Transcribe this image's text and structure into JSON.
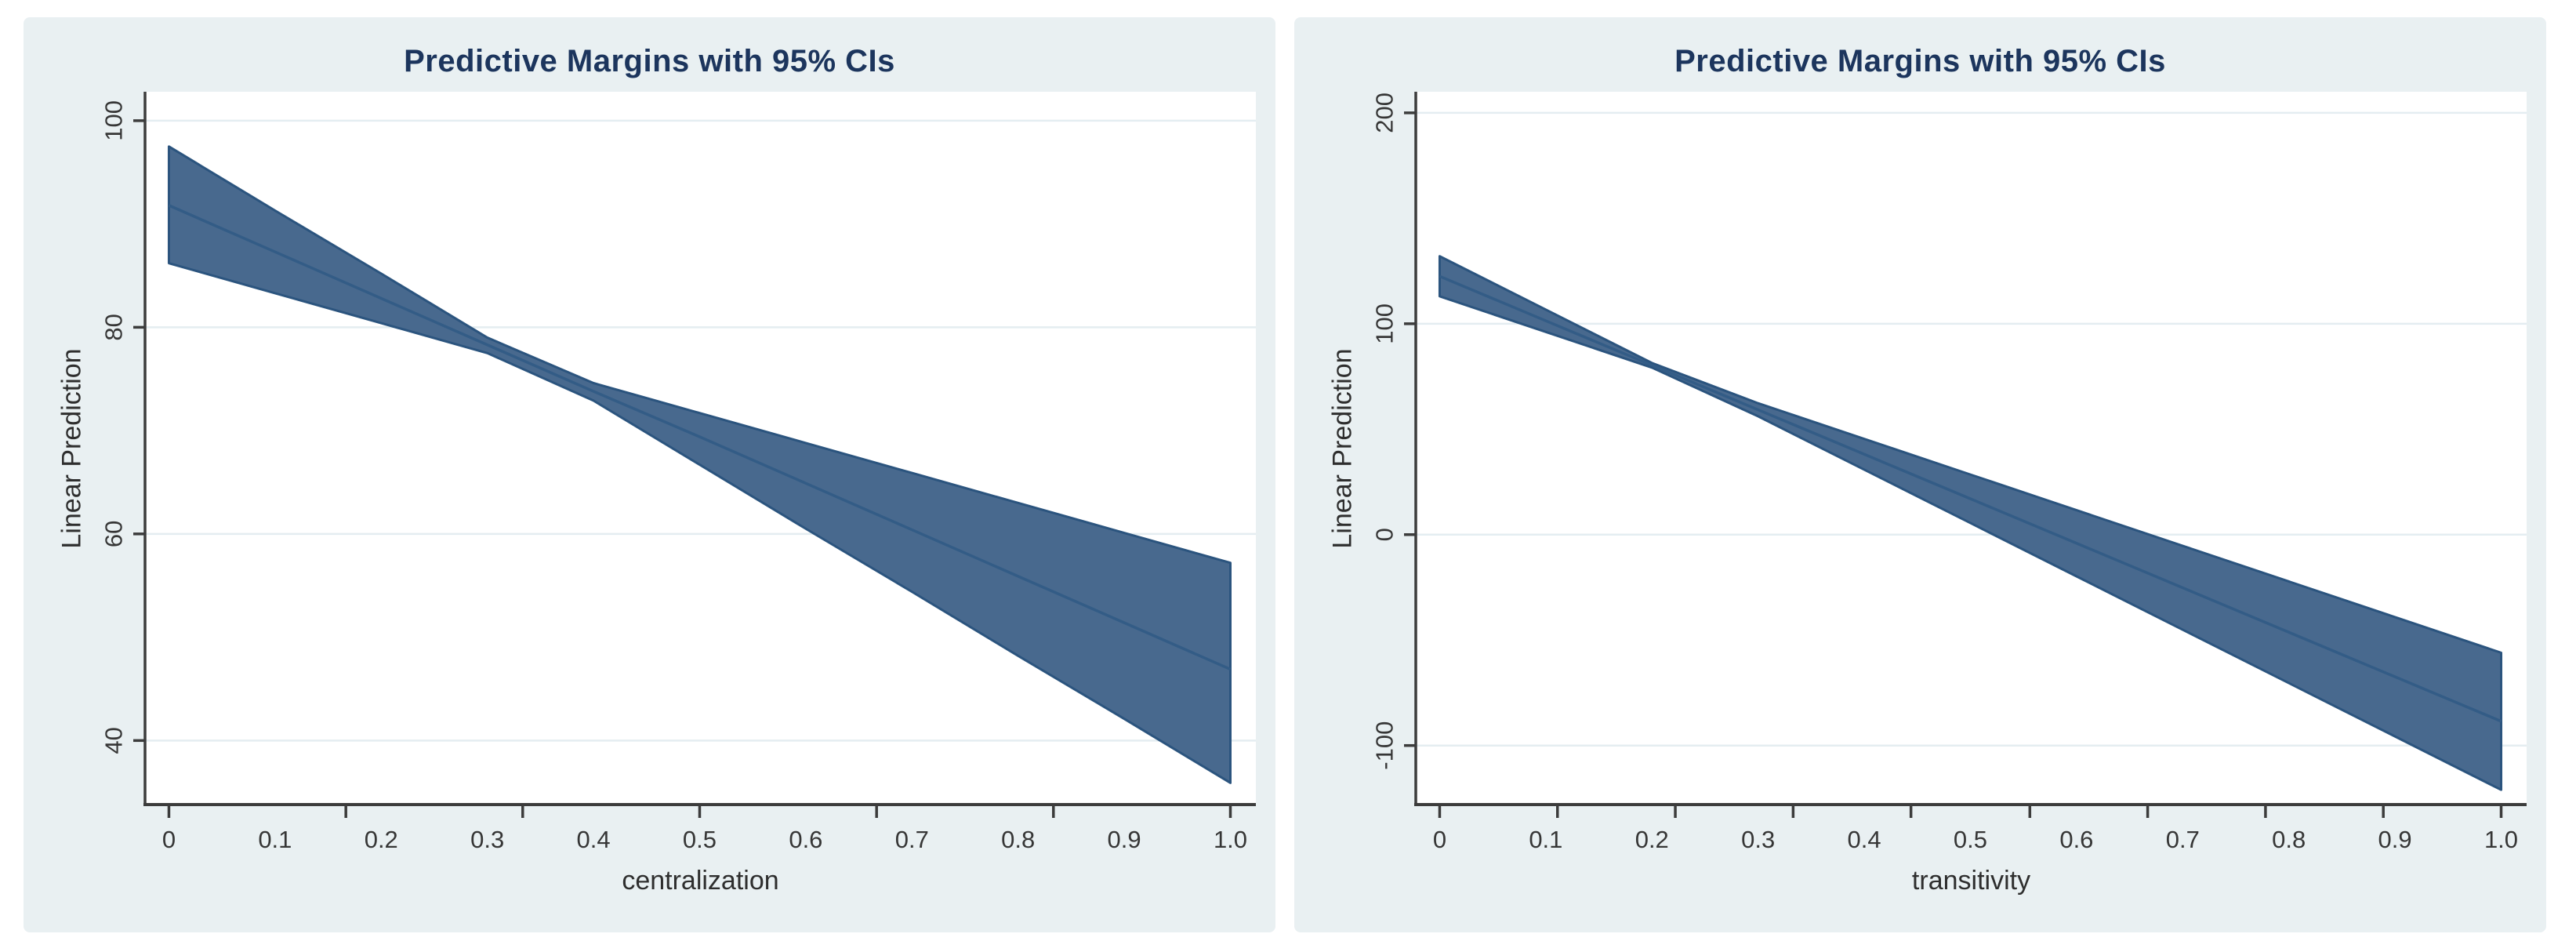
{
  "style": {
    "page_bg": "#ffffff",
    "canvas_bg": "#e9f0f2",
    "plot_bg": "#ffffff",
    "grid_color": "#e4edf1",
    "axis_color": "#3c3c3c",
    "tick_text_color": "#363636",
    "axis_title_color": "#2e2e2e",
    "title_color": "#1c355d",
    "band_fill": "#48698e",
    "band_edge": "#2b547e",
    "mean_line_color": "#335c86"
  },
  "chart_data": [
    {
      "id": "centralization",
      "type": "line",
      "title": "Predictive Margins with 95% CIs",
      "xlabel": "centralization",
      "ylabel": "Linear Prediction",
      "legend_position": "none",
      "grid": "horizontal",
      "xlim": [
        -0.0225,
        1.024
      ],
      "ylim": [
        33.8,
        102.8
      ],
      "x": [
        0,
        0.1,
        0.2,
        0.3,
        0.4,
        0.5,
        0.6,
        0.7,
        0.8,
        0.9,
        1.0
      ],
      "x_tick_labels": [
        "0",
        "0.1",
        "0.2",
        "0.3",
        "0.4",
        "0.5",
        "0.6",
        "0.7",
        "0.8",
        "0.9",
        "1.0"
      ],
      "x_tick_label_values": [
        0,
        0.1,
        0.2,
        0.3,
        0.4,
        0.5,
        0.6,
        0.7,
        0.8,
        0.9,
        1.0
      ],
      "x_tick_marks": [
        0,
        0.1667,
        0.3333,
        0.5,
        0.6667,
        0.8333,
        1.0
      ],
      "y_tick_labels": [
        "40",
        "60",
        "80",
        "100"
      ],
      "y_tick_values": [
        40,
        60,
        80,
        100
      ],
      "ci_pinch": {
        "x": 0.35,
        "y": 76.2
      },
      "series": [
        {
          "name": "Linear prediction",
          "role": "mean",
          "values": [
            91.8,
            87.3,
            82.8,
            78.3,
            73.8,
            69.4,
            64.9,
            60.4,
            55.9,
            51.4,
            46.9
          ]
        },
        {
          "name": "95% CI upper",
          "role": "ci_upper",
          "values": [
            97.5,
            91.3,
            85.2,
            79.0,
            74.6,
            71.7,
            68.8,
            65.9,
            63.0,
            60.1,
            57.2
          ]
        },
        {
          "name": "95% CI lower",
          "role": "ci_lower",
          "values": [
            86.2,
            83.3,
            80.4,
            77.5,
            72.9,
            66.7,
            60.5,
            54.4,
            48.2,
            42.1,
            35.9
          ]
        }
      ]
    },
    {
      "id": "transitivity",
      "type": "line",
      "title": "Predictive Margins with 95% CIs",
      "xlabel": "transitivity",
      "ylabel": "Linear Prediction",
      "legend_position": "none",
      "grid": "horizontal",
      "xlim": [
        -0.0225,
        1.024
      ],
      "ylim": [
        -128,
        210
      ],
      "x": [
        0,
        0.1,
        0.2,
        0.3,
        0.4,
        0.5,
        0.6,
        0.7,
        0.8,
        0.9,
        1.0
      ],
      "x_tick_labels": [
        "0",
        "0.1",
        "0.2",
        "0.3",
        "0.4",
        "0.5",
        "0.6",
        "0.7",
        "0.8",
        "0.9",
        "1.0"
      ],
      "x_tick_label_values": [
        0,
        0.1,
        0.2,
        0.3,
        0.4,
        0.5,
        0.6,
        0.7,
        0.8,
        0.9,
        1.0
      ],
      "x_tick_marks": [
        0,
        0.111,
        0.222,
        0.333,
        0.444,
        0.556,
        0.667,
        0.778,
        0.889,
        1.0
      ],
      "y_tick_labels": [
        "-100",
        "0",
        "100",
        "200"
      ],
      "y_tick_values": [
        -100,
        0,
        100,
        200
      ],
      "ci_pinch": {
        "x": 0.23,
        "y": 74.8
      },
      "series": [
        {
          "name": "Linear prediction",
          "role": "mean",
          "values": [
            122.5,
            101.4,
            80.3,
            59.2,
            38.1,
            17.0,
            -4.1,
            -25.2,
            -46.3,
            -67.4,
            -88.5
          ]
        },
        {
          "name": "95% CI upper",
          "role": "ci_upper",
          "values": [
            132.0,
            106.7,
            81.4,
            62.3,
            45.4,
            28.5,
            11.6,
            -5.3,
            -22.2,
            -39.1,
            -56.0
          ]
        },
        {
          "name": "95% CI lower",
          "role": "ci_lower",
          "values": [
            113.0,
            96.1,
            79.2,
            56.1,
            30.8,
            5.5,
            -19.8,
            -45.1,
            -70.4,
            -95.7,
            -121.0
          ]
        }
      ]
    }
  ]
}
